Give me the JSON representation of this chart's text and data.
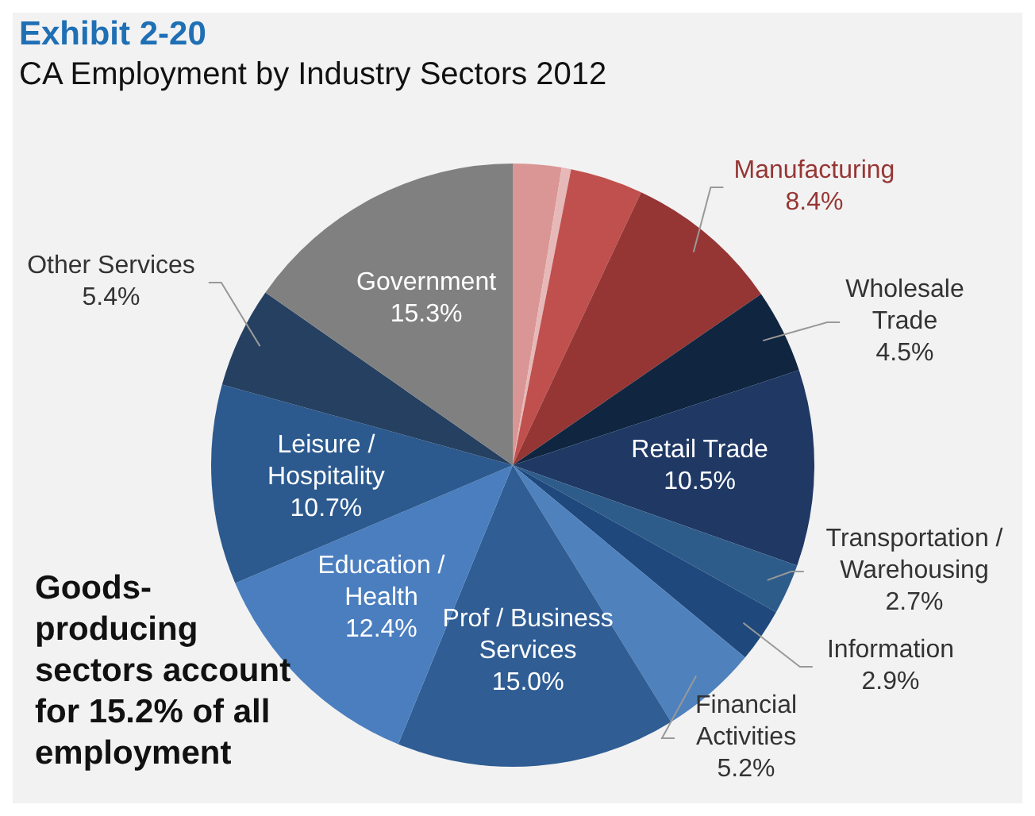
{
  "chart_data": {
    "type": "pie",
    "title": "Exhibit 2-20",
    "subtitle": "CA Employment by Industry Sectors 2012",
    "categories": [
      null,
      null,
      null,
      "Manufacturing",
      "Wholesale Trade",
      "Retail Trade",
      "Transportation / Warehousing",
      "Information",
      "Financial Activities",
      "Prof / Business Services",
      "Education / Health",
      "Leisure / Hospitality",
      "Other Services",
      "Government"
    ],
    "values": [
      2.6,
      0.5,
      3.9,
      8.4,
      4.5,
      10.5,
      2.7,
      2.9,
      5.2,
      15.0,
      12.4,
      10.7,
      5.4,
      15.3
    ],
    "colors": [
      "#da9694",
      "#e6b9b8",
      "#c0504d",
      "#963634",
      "#10253f",
      "#1f3864",
      "#2e5c8a",
      "#1f497d",
      "#4f81bd",
      "#2f5d94",
      "#4a7ebf",
      "#2c5a8f",
      "#254061",
      "#808080"
    ],
    "value_labels": [
      null,
      null,
      null,
      "8.4%",
      "4.5%",
      "10.5%",
      "2.7%",
      "2.9%",
      "5.2%",
      "15.0%",
      "12.4%",
      "10.7%",
      "5.4%",
      "15.3%"
    ],
    "legend": false,
    "annotations": [
      "Goods-producing sectors account for 15.2% of all employment"
    ]
  }
}
